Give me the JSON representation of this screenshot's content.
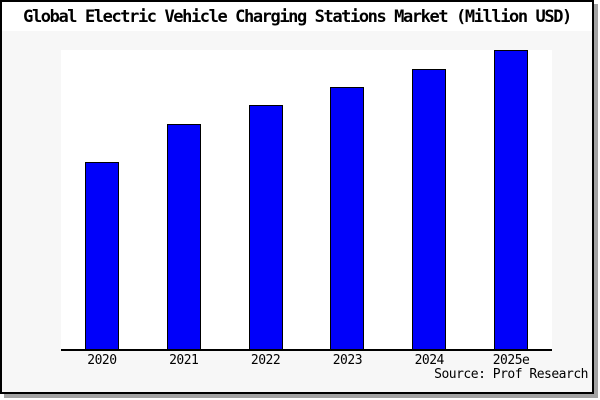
{
  "chart_data": {
    "type": "bar",
    "title": "Global Electric Vehicle Charging Stations Market (Million USD)",
    "categories": [
      "2020",
      "2021",
      "2022",
      "2023",
      "2024",
      "2025e"
    ],
    "values": [
      62.7,
      75.2,
      81.5,
      87.6,
      93.6,
      100
    ],
    "value_scale_note": "no y-axis tick labels are shown in the chart; values are relative bar heights with the tallest bar (2025e) = 100",
    "ylim": [
      0,
      100
    ],
    "xlabel": "",
    "ylabel": "",
    "legend": "none",
    "grid": false,
    "source": "Source: Prof Research",
    "colors": {
      "bar_fill": "#0000fa",
      "bar_border": "#000000",
      "margin_background": "#f7f7f7",
      "plot_background": "#ffffff",
      "frame_border": "#000000",
      "frame_shadow": "#a3a3a3",
      "axis_line": "#000000",
      "text": "#000000"
    }
  }
}
